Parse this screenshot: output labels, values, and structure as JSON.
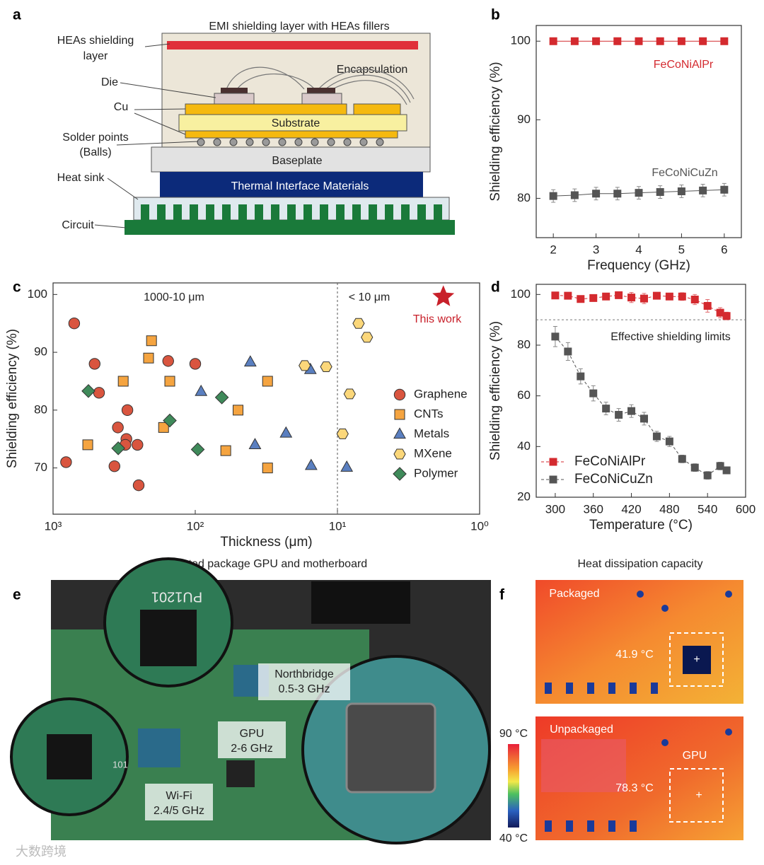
{
  "panel_labels": [
    "a",
    "b",
    "c",
    "d",
    "e",
    "f"
  ],
  "diagram": {
    "title": "EMI shielding layer with HEAs fillers",
    "shielding_label": [
      "HEAs shielding",
      "layer"
    ],
    "die_label": "Die",
    "cu_label": "Cu",
    "solder_label": [
      "Solder points",
      "(Balls)"
    ],
    "heat_sink_label": "Heat sink",
    "circuit_label": "Circuit",
    "encapsulation": "Encapsulation",
    "substrate": "Substrate",
    "baseplate": "Baseplate",
    "tim": "Thermal Interface Materials"
  },
  "chart_data": [
    {
      "type": "line",
      "xlabel": "Frequency (GHz)",
      "ylabel": "Shielding efficiency (%)",
      "x": [
        2,
        2.5,
        3,
        3.5,
        4,
        4.5,
        5,
        5.5,
        6
      ],
      "xlim": [
        1.6,
        6.4
      ],
      "xticks": [
        2,
        3,
        4,
        5,
        6
      ],
      "ylim": [
        75,
        102
      ],
      "yticks": [
        80,
        90,
        100
      ],
      "legend": "inline",
      "dashed": false,
      "series": [
        {
          "name": "FeCoNiAlPr",
          "color": "#d42a2f",
          "marker": "square",
          "values": [
            100,
            100,
            100,
            100,
            100,
            100,
            100,
            100,
            100
          ]
        },
        {
          "name": "FeCoNiCuZn",
          "color": "#555555",
          "marker": "square",
          "values": [
            80.3,
            80.4,
            80.6,
            80.6,
            80.7,
            80.8,
            80.9,
            81.0,
            81.1
          ],
          "errors": [
            0.8,
            0.8,
            0.8,
            0.8,
            0.8,
            0.8,
            0.8,
            0.8,
            0.8
          ]
        }
      ]
    },
    {
      "type": "scatter",
      "xlabel": "Thickness (μm)",
      "ylabel": "Shielding efficiency (%)",
      "xscale": "log",
      "xlim": [
        1000,
        1
      ],
      "xticks": [
        {
          "value": 1000,
          "label": "10³"
        },
        {
          "value": 100,
          "label": "10²"
        },
        {
          "value": 10,
          "label": "10¹"
        },
        {
          "value": 1,
          "label": "10⁰"
        }
      ],
      "ylim": [
        62,
        102
      ],
      "yticks": [
        70,
        80,
        90,
        100
      ],
      "divider_x": 10,
      "annotations": [
        "1000-10 μm",
        "< 10 μm"
      ],
      "highlight": {
        "name": "This work",
        "x": 1.8,
        "y": 99.6,
        "color": "#c8202a",
        "marker": "star"
      },
      "legend": "right",
      "series": [
        {
          "name": "Graphene",
          "color": "#d9553f",
          "marker": "circle",
          "x": [
            710,
            510,
            475,
            810,
            300,
            350,
            305,
            310,
            255,
            370,
            250,
            155,
            100
          ],
          "values": [
            95,
            88,
            83,
            71,
            80,
            77,
            75,
            74,
            74,
            70.3,
            67,
            88.5,
            88
          ]
        },
        {
          "name": "CNTs",
          "color": "#f5a440",
          "marker": "square",
          "x": [
            570,
            321,
            213,
            203,
            167,
            151,
            61,
            50,
            31,
            31
          ],
          "values": [
            74,
            85,
            89,
            92,
            77,
            85,
            73,
            80,
            85,
            70
          ]
        },
        {
          "name": "Metals",
          "color": "#5a7fc0",
          "marker": "triangle",
          "x": [
            91,
            41,
            38,
            23,
            15.5,
            15.3,
            8.6
          ],
          "values": [
            83.2,
            88.3,
            74,
            76,
            87,
            70.4,
            70.1
          ]
        },
        {
          "name": "MXene",
          "color": "#fbd77a",
          "marker": "hexagon",
          "x": [
            17,
            12,
            8.2,
            9.2,
            7.1,
            6.2
          ],
          "values": [
            87.7,
            87.5,
            82.8,
            75.9,
            95,
            92.6
          ]
        },
        {
          "name": "Polymer",
          "color": "#3f8a5a",
          "marker": "diamond",
          "x": [
            564,
            348,
            151,
            96,
            65
          ],
          "values": [
            83.3,
            73.4,
            78.2,
            73.2,
            82.2
          ]
        }
      ]
    },
    {
      "type": "line",
      "xlabel": "Temperature (°C)",
      "ylabel": "Shielding efficiency (%)",
      "x": [
        300,
        320,
        340,
        360,
        380,
        400,
        420,
        440,
        460,
        480,
        500,
        520,
        540,
        560,
        570
      ],
      "xlim": [
        270,
        600
      ],
      "xticks": [
        300,
        360,
        420,
        480,
        540,
        600
      ],
      "ylim": [
        20,
        104
      ],
      "yticks": [
        20,
        40,
        60,
        80,
        100
      ],
      "reference": {
        "y": 90,
        "label": "Effective shielding limits"
      },
      "legend": "lower left",
      "dashed": true,
      "series": [
        {
          "name": "FeCoNiAlPr",
          "color": "#d42a2f",
          "marker": "square",
          "values": [
            99.6,
            99.5,
            98.2,
            98.6,
            99.2,
            99.7,
            98.8,
            98.4,
            99.5,
            99.2,
            99.2,
            98.0,
            95.5,
            92.8,
            91.5
          ],
          "errors": [
            1.2,
            1.0,
            1.2,
            1.0,
            1.0,
            1.0,
            2.0,
            2.0,
            1.2,
            1.2,
            1.5,
            2.0,
            2.5,
            2.0,
            1.5
          ]
        },
        {
          "name": "FeCoNiCuZn",
          "color": "#555555",
          "marker": "square",
          "values": [
            83.4,
            77.5,
            67.7,
            61,
            55,
            52.5,
            54,
            51,
            44,
            42,
            35.1,
            31.7,
            28.6,
            32.3,
            30.6
          ],
          "errors": [
            4,
            3.5,
            3,
            3,
            2.5,
            2.5,
            2.5,
            2.5,
            2,
            2,
            1.5,
            1.5,
            1.5,
            1.5,
            1
          ]
        }
      ]
    }
  ],
  "photo": {
    "title": "Integrated package GPU and motherboard",
    "chip_marking": "PU1201",
    "chip_code": "101",
    "callouts": [
      {
        "lines": [
          "Northbridge",
          "0.5-3 GHz"
        ]
      },
      {
        "lines": [
          "GPU",
          "2-6 GHz"
        ]
      },
      {
        "lines": [
          "Wi-Fi",
          "2.4/5 GHz"
        ]
      }
    ]
  },
  "thermal": {
    "title": "Heat dissipation capacity",
    "images": [
      {
        "label": "Packaged",
        "temperature": "41.9 °C"
      },
      {
        "label": "Unpackaged",
        "marker": "GPU",
        "temperature": "78.3 °C"
      }
    ],
    "colorbar": {
      "max": "90 °C",
      "min": "40 °C"
    }
  },
  "watermark": "大数跨境"
}
